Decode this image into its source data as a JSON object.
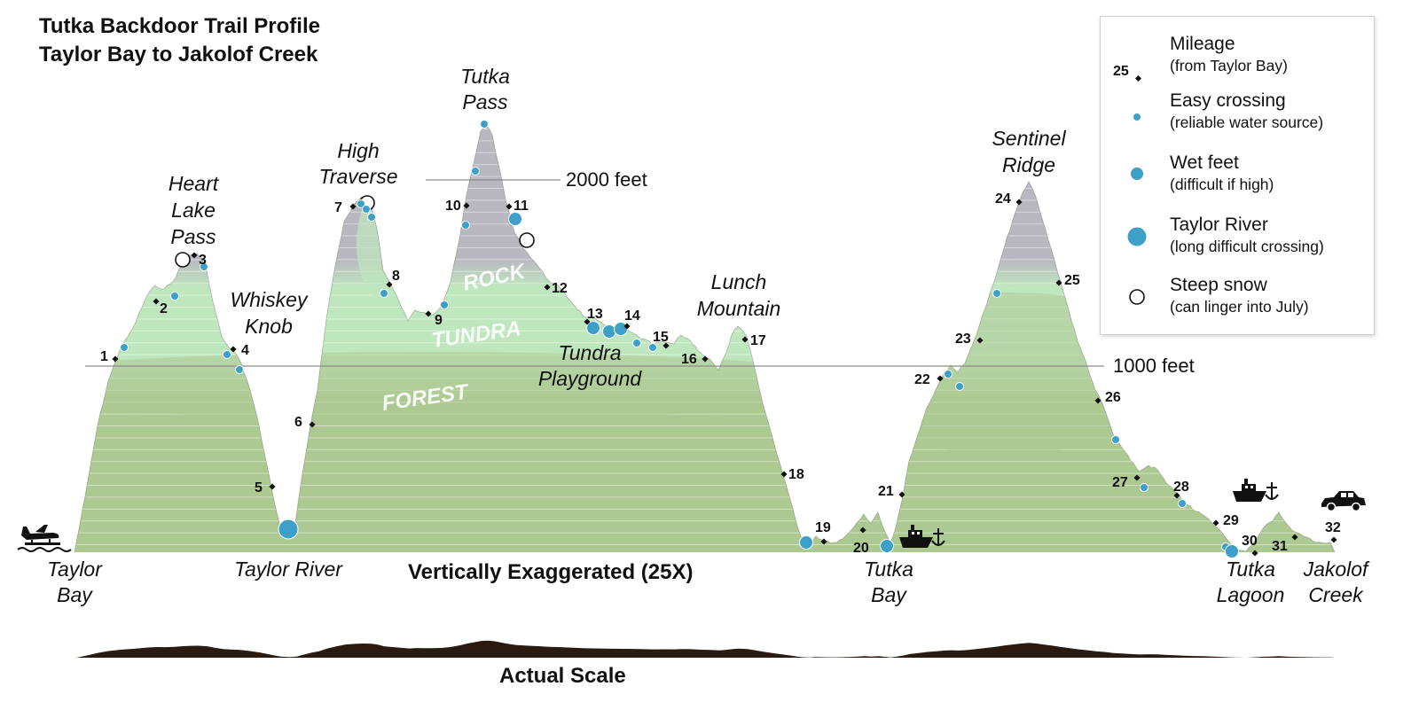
{
  "title": {
    "line1": "Tutka Backdoor Trail Profile",
    "line2": "Taylor Bay to Jakolof Creek"
  },
  "colors": {
    "forest": "#adc992",
    "tundra": "#bfe7be",
    "rock": "#b9b8c0",
    "water_dot": "#3da0c8",
    "actual_scale": "#2a1a10"
  },
  "elevation_lines": [
    {
      "label": "1000 feet",
      "feet": 1000
    },
    {
      "label": "2000 feet",
      "feet": 2000
    }
  ],
  "zone_labels": {
    "rock": "ROCK",
    "tundra": "TUNDRA",
    "forest": "FOREST"
  },
  "place_labels": [
    {
      "id": "heart-lake-pass",
      "lines": [
        "Heart",
        "Lake",
        "Pass"
      ],
      "italic": true
    },
    {
      "id": "whiskey-knob",
      "lines": [
        "Whiskey",
        "Knob"
      ],
      "italic": true
    },
    {
      "id": "high-traverse",
      "lines": [
        "High",
        "Traverse"
      ],
      "italic": true
    },
    {
      "id": "tutka-pass",
      "lines": [
        "Tutka",
        "Pass"
      ],
      "italic": true
    },
    {
      "id": "lunch-mountain",
      "lines": [
        "Lunch",
        "Mountain"
      ],
      "italic": true
    },
    {
      "id": "tundra-playground",
      "lines": [
        "Tundra",
        "Playground"
      ],
      "italic": true
    },
    {
      "id": "sentinel-ridge",
      "lines": [
        "Sentinel",
        "Ridge"
      ],
      "italic": true
    },
    {
      "id": "taylor-bay",
      "lines": [
        "Taylor",
        "Bay"
      ],
      "italic": true
    },
    {
      "id": "taylor-river",
      "lines": [
        "Taylor River"
      ],
      "italic": true
    },
    {
      "id": "tutka-bay",
      "lines": [
        "Tutka",
        "Bay"
      ],
      "italic": true
    },
    {
      "id": "tutka-lagoon",
      "lines": [
        "Tutka",
        "Lagoon"
      ],
      "italic": true
    },
    {
      "id": "jakolof-creek",
      "lines": [
        "Jakolof",
        "Creek"
      ],
      "italic": true
    }
  ],
  "mileage_markers": [
    "1",
    "2",
    "3",
    "4",
    "5",
    "6",
    "7",
    "8",
    "9",
    "10",
    "11",
    "12",
    "13",
    "14",
    "15",
    "16",
    "17",
    "18",
    "19",
    "20",
    "21",
    "22",
    "23",
    "24",
    "25",
    "26",
    "27",
    "28",
    "29",
    "30",
    "31",
    "32"
  ],
  "scale_labels": {
    "exaggerated": "Vertically Exaggerated (25X)",
    "actual": "Actual Scale"
  },
  "legend": {
    "items": [
      {
        "id": "mileage",
        "label": "Mileage",
        "sub": "(from Taylor Bay)",
        "sample": "25"
      },
      {
        "id": "easy",
        "label": "Easy crossing",
        "sub": "(reliable water source)"
      },
      {
        "id": "wet",
        "label": "Wet feet",
        "sub": "(difficult if high)"
      },
      {
        "id": "river",
        "label": "Taylor River",
        "sub": "(long difficult crossing)"
      },
      {
        "id": "snow",
        "label": "Steep snow",
        "sub": "(can linger into July)"
      }
    ]
  },
  "icons": [
    "floatplane-icon",
    "water-taxi-icon",
    "car-icon"
  ]
}
